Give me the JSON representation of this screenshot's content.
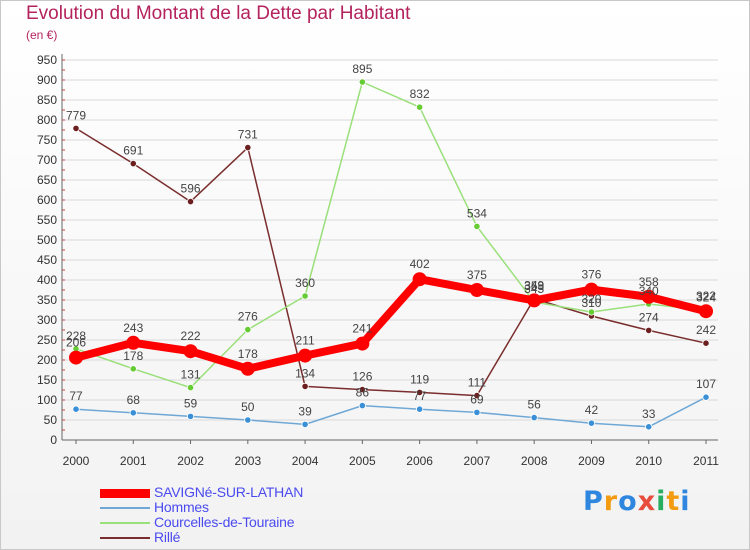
{
  "header": {
    "title": "Evolution du Montant de la Dette par Habitant",
    "subtitle": "(en €)"
  },
  "colors": {
    "title": "#b4235d",
    "axis": "#666666",
    "grid": "#d9d9d9",
    "legend_text": "#4a4af0"
  },
  "chart_data": {
    "type": "line",
    "title": "Evolution du Montant de la Dette par Habitant",
    "subtitle": "(en €)",
    "xlabel": "",
    "ylabel": "",
    "categories": [
      "2000",
      "2001",
      "2002",
      "2003",
      "2004",
      "2005",
      "2006",
      "2007",
      "2008",
      "2009",
      "2010",
      "2011"
    ],
    "ylim": [
      0,
      950
    ],
    "yticks": [
      0,
      50,
      100,
      150,
      200,
      250,
      300,
      350,
      400,
      450,
      500,
      550,
      600,
      650,
      700,
      750,
      800,
      850,
      900,
      950
    ],
    "grid": "horizontal",
    "legend_position": "bottom-left",
    "series": [
      {
        "name": "SAVIGNé-SUR-LATHAN",
        "color": "#ff0000",
        "width": 8,
        "marker": 7,
        "values": [
          206,
          243,
          222,
          178,
          211,
          241,
          402,
          375,
          349,
          376,
          358,
          322
        ]
      },
      {
        "name": "Hommes",
        "color": "#6fa8d6",
        "width": 1.5,
        "marker": 3.2,
        "markerFill": "#3b8fd6",
        "values": [
          77,
          68,
          59,
          50,
          39,
          86,
          77,
          69,
          56,
          42,
          33,
          107
        ]
      },
      {
        "name": "Courcelles-de-Touraine",
        "color": "#9ae07a",
        "width": 1.5,
        "marker": 3.2,
        "markerFill": "#66cc33",
        "values": [
          228,
          178,
          131,
          276,
          360,
          895,
          832,
          534,
          345,
          320,
          340,
          324
        ]
      },
      {
        "name": "Rillé",
        "color": "#7a2d2d",
        "width": 1.5,
        "marker": 3.2,
        "markerFill": "#6b1f1f",
        "values": [
          779,
          691,
          596,
          731,
          134,
          126,
          119,
          111,
          353,
          310,
          274,
          242
        ]
      }
    ]
  },
  "logo": {
    "text": "Proxiti",
    "letters": [
      {
        "ch": "P",
        "color": "#2e86de"
      },
      {
        "ch": "r",
        "color": "#f39c12"
      },
      {
        "ch": "o",
        "color": "#2e86de"
      },
      {
        "ch": "x",
        "color": "#e74c3c"
      },
      {
        "ch": "i",
        "color": "#27ae60"
      },
      {
        "ch": "t",
        "color": "#f39c12"
      },
      {
        "ch": "i",
        "color": "#2e86de"
      }
    ]
  }
}
